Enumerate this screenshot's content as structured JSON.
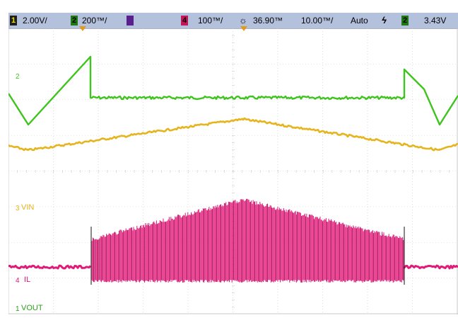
{
  "topbar": {
    "ch1": {
      "num": "1",
      "scale": "2.00V/",
      "color": "#2a9d1a"
    },
    "ch2": {
      "num": "2",
      "scale": "200™/",
      "color": "#2a9d1a"
    },
    "ch3": {
      "num": "3",
      "color": "#6a2aa0"
    },
    "ch4": {
      "num": "4",
      "scale": "100™/",
      "color": "#d11f6a"
    },
    "delay": "36.90™",
    "timebase": "10.00™/",
    "mode": "Auto",
    "trigger": {
      "num": "2",
      "level": "3.43V"
    }
  },
  "labels": {
    "vin": "VIN",
    "il": "IL",
    "vout": "VOUT",
    "ch1_marker": "1",
    "ch2_marker": "2",
    "ch3_marker": "3",
    "ch4_marker": "4"
  },
  "colors": {
    "green": "#3ec41c",
    "yellow": "#e6b41c",
    "magenta": "#e01a78",
    "grid": "#c9c9c9",
    "topbar": "#b3c1dc"
  }
}
